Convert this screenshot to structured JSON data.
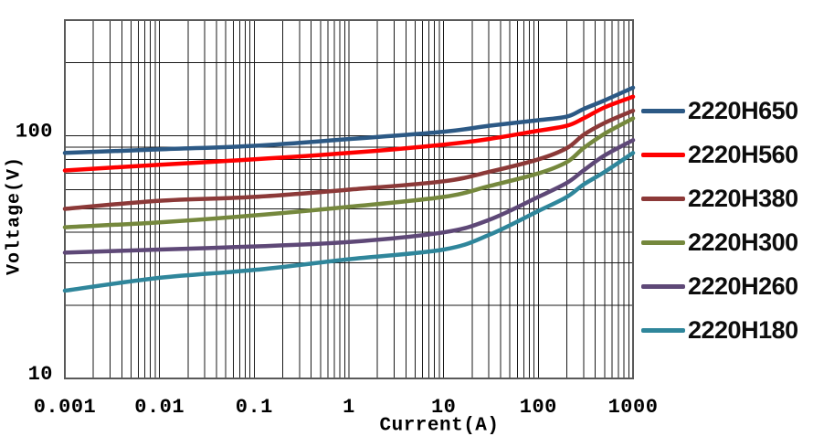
{
  "chart_data": {
    "type": "line",
    "title": "",
    "xlabel": "Current(A)",
    "ylabel": "Voltage(V)",
    "x_scale": "log",
    "y_scale": "log",
    "xlim": [
      0.001,
      1000
    ],
    "ylim": [
      10,
      300
    ],
    "grid": "major+minor",
    "legend_position": "right",
    "x_ticks": [
      0.001,
      0.01,
      0.1,
      1,
      10,
      100,
      1000
    ],
    "x_tick_labels": [
      "0.001",
      "0.01",
      "0.1",
      "1",
      "10",
      "100",
      "1000"
    ],
    "y_ticks": [
      10,
      100
    ],
    "y_tick_labels": [
      "10",
      "100"
    ],
    "x": [
      0.001,
      0.01,
      0.1,
      1,
      10,
      30,
      100,
      200,
      300,
      500,
      1000
    ],
    "series": [
      {
        "name": "2220H650",
        "color": "#2C5985",
        "values": [
          85,
          88,
          91,
          97,
          104,
          110,
          116,
          120,
          129,
          140,
          158
        ]
      },
      {
        "name": "2220H560",
        "color": "#FF0000",
        "values": [
          72,
          76,
          80,
          85,
          92,
          97,
          105,
          110,
          118,
          131,
          145
        ]
      },
      {
        "name": "2220H380",
        "color": "#8C3938",
        "values": [
          50,
          54,
          56,
          60,
          65,
          71,
          80,
          89,
          101,
          113,
          127
        ]
      },
      {
        "name": "2220H300",
        "color": "#75883D",
        "values": [
          42,
          44,
          47,
          51,
          56,
          62,
          70,
          78,
          89,
          102,
          118
        ]
      },
      {
        "name": "2220H260",
        "color": "#5E4877",
        "values": [
          33,
          34,
          35,
          36.5,
          40,
          45,
          56,
          64,
          72,
          83,
          96
        ]
      },
      {
        "name": "2220H180",
        "color": "#2F869B",
        "values": [
          23,
          26,
          28,
          31,
          34,
          39,
          49,
          56,
          63,
          71,
          85
        ]
      }
    ],
    "style_colors": {
      "gridline": "#1A1A1A",
      "plot_border": "#595959",
      "tick_text": "#000000",
      "legend_text": "#0D0D0D",
      "background": "#FFFFFF"
    }
  }
}
